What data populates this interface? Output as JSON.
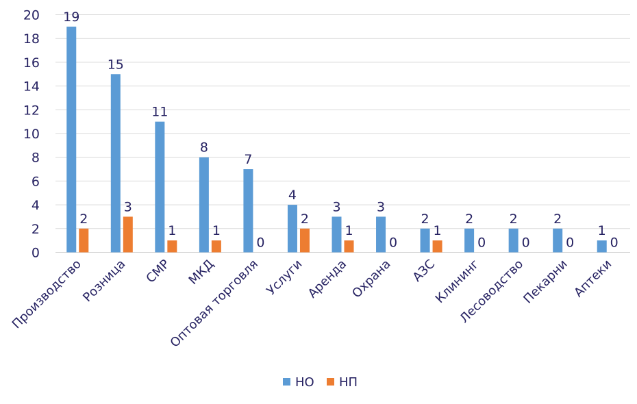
{
  "chart_data": {
    "type": "bar",
    "title": "",
    "xlabel": "",
    "ylabel": "",
    "ylim": [
      0,
      20
    ],
    "yticks": [
      0,
      2,
      4,
      6,
      8,
      10,
      12,
      14,
      16,
      18,
      20
    ],
    "grid": true,
    "legend_position": "bottom",
    "categories": [
      "Производство",
      "Розница",
      "СМР",
      "МКД",
      "Оптовая торговля",
      "Услуги",
      "Аренда",
      "Охрана",
      "АЗС",
      "Клининг",
      "Лесоводство",
      "Пекарни",
      "Аптеки"
    ],
    "series": [
      {
        "name": "НО",
        "color": "#5b9bd5",
        "values": [
          19,
          15,
          11,
          8,
          7,
          4,
          3,
          3,
          2,
          2,
          2,
          2,
          1
        ]
      },
      {
        "name": "НП",
        "color": "#ed7d31",
        "values": [
          2,
          3,
          1,
          1,
          0,
          2,
          1,
          0,
          1,
          0,
          0,
          0,
          0
        ]
      }
    ]
  }
}
